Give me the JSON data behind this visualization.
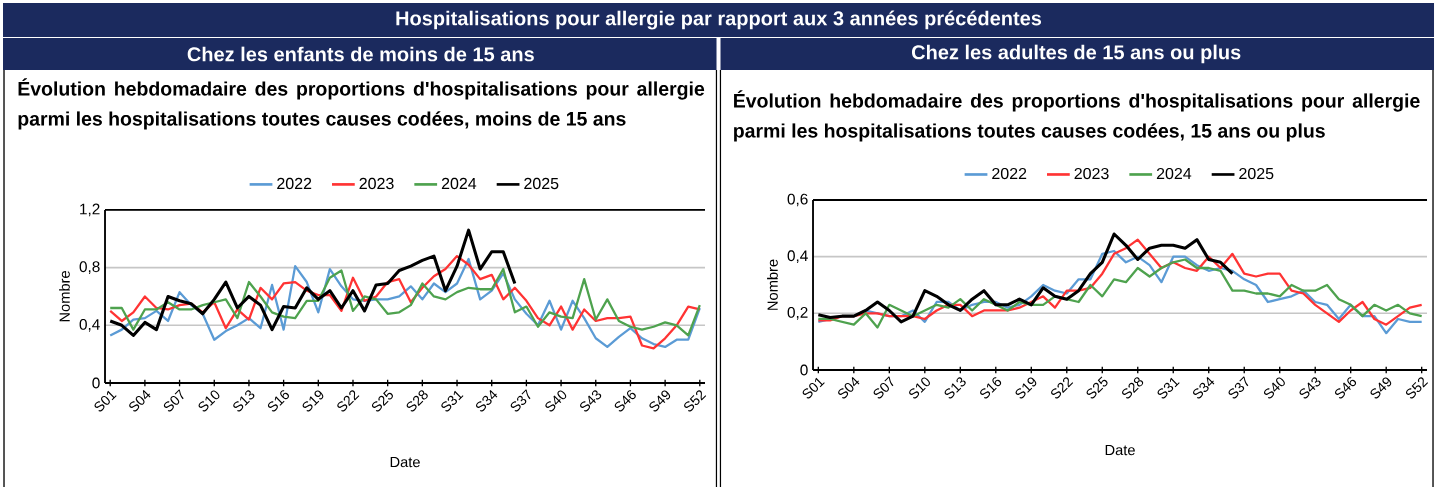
{
  "chart_data": [
    {
      "type": "line",
      "annotations": [
        "Hospitalisations pour allergie par rapport aux 3 années précédentes"
      ],
      "title": "Chez les enfants de moins de 15 ans",
      "subtitle": "Évolution hebdomadaire des proportions d'hospitalisations pour allergie parmi les hospitalisations toutes causes codées, moins de 15 ans",
      "xlabel": "Date",
      "ylabel": "Nombre",
      "legend": "top",
      "grid": "y",
      "categories": [
        "S01",
        null,
        null,
        "S04",
        null,
        null,
        "S07",
        null,
        null,
        "S10",
        null,
        null,
        "S13",
        null,
        null,
        "S16",
        null,
        null,
        "S19",
        null,
        null,
        "S22",
        null,
        null,
        "S25",
        null,
        null,
        "S28",
        null,
        null,
        "S31",
        null,
        null,
        "S34",
        null,
        null,
        "S37",
        null,
        null,
        "S40",
        null,
        null,
        "S43",
        null,
        null,
        "S46",
        null,
        null,
        "S49",
        null,
        null,
        "S52"
      ],
      "ylim": [
        0,
        1.2
      ],
      "yticks": [
        0,
        {
          "value": 0.4,
          "label": "0,4"
        },
        {
          "value": 0.8,
          "label": "0,8"
        },
        {
          "value": 1.2,
          "label": "1,2"
        }
      ],
      "series": [
        {
          "name": "2022",
          "color": "#5b9bd5",
          "values": [
            0.33,
            0.37,
            0.44,
            0.45,
            0.5,
            0.43,
            0.63,
            0.54,
            0.48,
            0.3,
            0.36,
            0.4,
            0.45,
            0.38,
            0.68,
            0.37,
            0.81,
            0.7,
            0.49,
            0.79,
            0.67,
            0.58,
            0.57,
            0.58,
            0.58,
            0.6,
            0.67,
            0.58,
            0.69,
            0.63,
            0.69,
            0.86,
            0.58,
            0.64,
            0.76,
            0.58,
            0.48,
            0.4,
            0.57,
            0.37,
            0.57,
            0.45,
            0.31,
            0.25,
            0.32,
            0.38,
            0.31,
            0.27,
            0.25,
            0.3,
            0.3,
            0.52
          ]
        },
        {
          "name": "2023",
          "color": "#ff3333",
          "values": [
            0.5,
            0.43,
            0.49,
            0.6,
            0.52,
            0.51,
            0.54,
            0.55,
            0.49,
            0.56,
            0.38,
            0.51,
            0.44,
            0.66,
            0.58,
            0.69,
            0.7,
            0.64,
            0.61,
            0.61,
            0.5,
            0.73,
            0.57,
            0.6,
            0.7,
            0.72,
            0.56,
            0.66,
            0.74,
            0.79,
            0.88,
            0.82,
            0.72,
            0.75,
            0.58,
            0.66,
            0.57,
            0.45,
            0.4,
            0.53,
            0.37,
            0.51,
            0.43,
            0.45,
            0.45,
            0.46,
            0.26,
            0.24,
            0.31,
            0.4,
            0.53,
            0.51
          ]
        },
        {
          "name": "2024",
          "color": "#4ea24e",
          "values": [
            0.52,
            0.52,
            0.37,
            0.51,
            0.51,
            0.56,
            0.51,
            0.51,
            0.54,
            0.56,
            0.58,
            0.45,
            0.7,
            0.6,
            0.49,
            0.46,
            0.45,
            0.57,
            0.57,
            0.73,
            0.78,
            0.5,
            0.6,
            0.58,
            0.48,
            0.49,
            0.54,
            0.69,
            0.6,
            0.58,
            0.63,
            0.66,
            0.65,
            0.65,
            0.79,
            0.49,
            0.53,
            0.39,
            0.49,
            0.46,
            0.45,
            0.72,
            0.44,
            0.58,
            0.43,
            0.39,
            0.37,
            0.39,
            0.42,
            0.4,
            0.33,
            0.54
          ]
        },
        {
          "name": "2025",
          "color": "#000000",
          "values": [
            0.43,
            0.4,
            0.33,
            0.42,
            0.37,
            0.6,
            0.57,
            0.55,
            0.48,
            0.58,
            0.7,
            0.52,
            0.6,
            0.54,
            0.37,
            0.53,
            0.52,
            0.66,
            0.58,
            0.64,
            0.52,
            0.64,
            0.5,
            0.68,
            0.69,
            0.78,
            0.81,
            0.85,
            0.88,
            0.64,
            0.81,
            1.06,
            0.79,
            0.91,
            0.91,
            0.69,
            null,
            null,
            null,
            null,
            null,
            null,
            null,
            null,
            null,
            null,
            null,
            null,
            null,
            null,
            null,
            null
          ]
        }
      ]
    },
    {
      "type": "line",
      "title": "Chez les adultes de 15 ans ou plus",
      "subtitle": "Évolution hebdomadaire des proportions d'hospitalisations pour allergie parmi les hospitalisations toutes causes codées, 15 ans ou plus",
      "xlabel": "Date",
      "ylabel": "Nombre",
      "legend": "top",
      "grid": "y",
      "categories": [
        "S01",
        null,
        null,
        "S04",
        null,
        null,
        "S07",
        null,
        null,
        "S10",
        null,
        null,
        "S13",
        null,
        null,
        "S16",
        null,
        null,
        "S19",
        null,
        null,
        "S22",
        null,
        null,
        "S25",
        null,
        null,
        "S28",
        null,
        null,
        "S31",
        null,
        null,
        "S34",
        null,
        null,
        "S37",
        null,
        null,
        "S40",
        null,
        null,
        "S43",
        null,
        null,
        "S46",
        null,
        null,
        "S49",
        null,
        null,
        "S52"
      ],
      "ylim": [
        0,
        0.6
      ],
      "yticks": [
        0,
        {
          "value": 0.2,
          "label": "0,2"
        },
        {
          "value": 0.4,
          "label": "0,4"
        },
        {
          "value": 0.6,
          "label": "0,6"
        }
      ],
      "series": [
        {
          "name": "2022",
          "color": "#5b9bd5",
          "values": [
            0.17,
            0.18,
            0.19,
            0.19,
            0.21,
            0.2,
            0.19,
            0.19,
            0.21,
            0.17,
            0.24,
            0.24,
            0.21,
            0.23,
            0.24,
            0.24,
            0.22,
            0.23,
            0.26,
            0.3,
            0.28,
            0.27,
            0.32,
            0.32,
            0.41,
            0.42,
            0.38,
            0.4,
            0.37,
            0.31,
            0.4,
            0.4,
            0.37,
            0.35,
            0.36,
            0.35,
            0.32,
            0.3,
            0.24,
            0.25,
            0.26,
            0.28,
            0.24,
            0.23,
            0.18,
            0.23,
            0.19,
            0.19,
            0.13,
            0.18,
            0.17,
            0.17
          ]
        },
        {
          "name": "2023",
          "color": "#ff3333",
          "values": [
            0.175,
            0.175,
            0.19,
            0.19,
            0.2,
            0.2,
            0.19,
            0.19,
            0.19,
            0.18,
            0.21,
            0.23,
            0.23,
            0.19,
            0.21,
            0.21,
            0.21,
            0.22,
            0.24,
            0.26,
            0.22,
            0.28,
            0.28,
            0.29,
            0.34,
            0.41,
            0.43,
            0.46,
            0.41,
            0.36,
            0.38,
            0.36,
            0.35,
            0.4,
            0.36,
            0.41,
            0.34,
            0.33,
            0.34,
            0.34,
            0.28,
            0.27,
            0.23,
            0.2,
            0.17,
            0.21,
            0.24,
            0.18,
            0.16,
            0.19,
            0.22,
            0.23
          ]
        },
        {
          "name": "2024",
          "color": "#4ea24e",
          "values": [
            0.18,
            0.18,
            0.17,
            0.16,
            0.2,
            0.15,
            0.23,
            0.21,
            0.19,
            0.21,
            0.23,
            0.22,
            0.25,
            0.21,
            0.25,
            0.23,
            0.21,
            0.24,
            0.23,
            0.23,
            0.26,
            0.25,
            0.24,
            0.3,
            0.26,
            0.32,
            0.31,
            0.36,
            0.33,
            0.36,
            0.38,
            0.39,
            0.36,
            0.36,
            0.35,
            0.28,
            0.28,
            0.27,
            0.27,
            0.26,
            0.3,
            0.28,
            0.28,
            0.3,
            0.25,
            0.23,
            0.19,
            0.23,
            0.21,
            0.23,
            0.2,
            0.19
          ]
        },
        {
          "name": "2025",
          "color": "#000000",
          "values": [
            0.195,
            0.185,
            0.19,
            0.19,
            0.21,
            0.24,
            0.21,
            0.17,
            0.19,
            0.28,
            0.26,
            0.23,
            0.21,
            0.25,
            0.28,
            0.23,
            0.23,
            0.25,
            0.23,
            0.29,
            0.26,
            0.25,
            0.28,
            0.34,
            0.38,
            0.48,
            0.44,
            0.39,
            0.43,
            0.44,
            0.44,
            0.43,
            0.46,
            0.39,
            0.38,
            0.34,
            null,
            null,
            null,
            null,
            null,
            null,
            null,
            null,
            null,
            null,
            null,
            null,
            null,
            null,
            null,
            null
          ]
        }
      ]
    }
  ]
}
